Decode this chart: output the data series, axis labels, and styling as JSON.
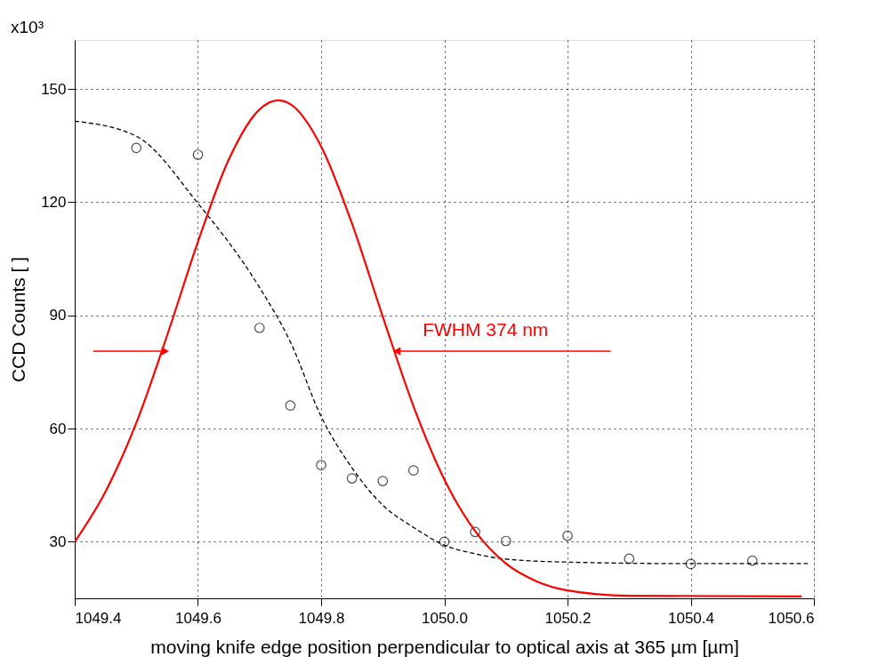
{
  "chart_data": {
    "type": "scatter",
    "xlabel": "moving knife edge position perpendicular to optical axis at 365 µm [µm]",
    "ylabel": "CCD Counts [ ]",
    "xlim": [
      1049.4,
      1050.6
    ],
    "xticks": [
      {
        "value": 1049.4,
        "label": "1049.4"
      },
      {
        "value": 1049.6,
        "label": "1049.6"
      },
      {
        "value": 1049.8,
        "label": "1049.8"
      },
      {
        "value": 1050.0,
        "label": "1050.0"
      },
      {
        "value": 1050.2,
        "label": "1050.2"
      },
      {
        "value": 1050.4,
        "label": "1050.4"
      },
      {
        "value": 1050.6,
        "label": "1050.6"
      }
    ],
    "ylim": [
      15,
      163
    ],
    "yticks": [
      30,
      60,
      90,
      120,
      150
    ],
    "grid": true,
    "series": [
      {
        "type": "scatter",
        "marker": "circle",
        "color": "#000000",
        "x": [
          1049.5,
          1049.6,
          1049.7,
          1049.75,
          1049.8,
          1049.85,
          1049.9,
          1049.95,
          1050.0,
          1050.05,
          1050.1,
          1050.2,
          1050.3,
          1050.4,
          1050.5
        ],
        "values": [
          134.4,
          132.6,
          86.7,
          66.1,
          50.3,
          46.8,
          46.1,
          48.9,
          30.0,
          32.6,
          30.2,
          31.6,
          25.5,
          24.1,
          25.0
        ]
      },
      {
        "type": "line",
        "line_style": "dashed",
        "marker": "none",
        "color": "#000000",
        "x": [
          1049.4,
          1049.5,
          1049.6,
          1049.7,
          1049.75,
          1049.8,
          1049.85,
          1049.9,
          1049.95,
          1050.0,
          1050.05,
          1050.1,
          1050.2,
          1050.4,
          1050.59
        ],
        "values": [
          141.5,
          137.5,
          119.7,
          97.4,
          83.0,
          63.2,
          49.6,
          39.7,
          33.8,
          29.1,
          26.8,
          25.4,
          24.6,
          24.2,
          24.2
        ]
      },
      {
        "type": "line",
        "line_style": "solid",
        "marker": "none",
        "color": "#ff0000",
        "x": [
          1049.4,
          1049.45,
          1049.5,
          1049.55,
          1049.6,
          1049.65,
          1049.7,
          1049.73,
          1049.75,
          1049.8,
          1049.85,
          1049.9,
          1049.95,
          1050.0,
          1050.05,
          1050.1,
          1050.15,
          1050.2,
          1050.3,
          1050.58
        ],
        "values": [
          30.0,
          43.3,
          61.5,
          84.7,
          109.5,
          131.3,
          144.6,
          147.0,
          146.0,
          134.8,
          114.4,
          89.7,
          65.9,
          46.5,
          32.8,
          24.2,
          19.5,
          17.1,
          15.7,
          15.5
        ]
      }
    ],
    "annotations": [
      "x10³",
      {
        "text": "FWHM 374 nm",
        "x": 1049.91,
        "y": 86
      }
    ]
  }
}
